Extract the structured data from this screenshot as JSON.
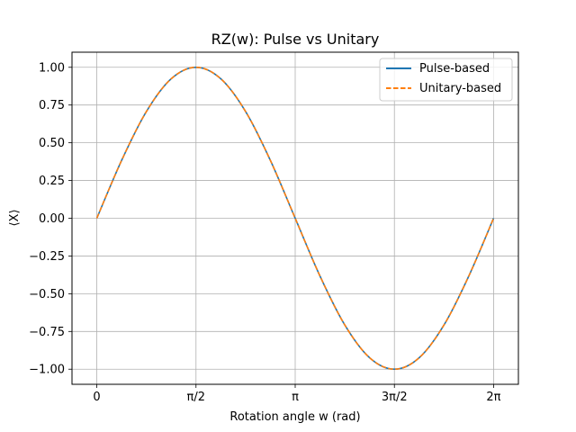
{
  "chart_data": {
    "type": "line",
    "title": "RZ(w): Pulse vs Unitary",
    "xlabel": "Rotation angle w (rad)",
    "ylabel": "⟨X⟩",
    "xlim": [
      -0.3927,
      6.6759
    ],
    "ylim": [
      -1.1,
      1.1
    ],
    "x_ticks": [
      {
        "value": 0,
        "label": "0"
      },
      {
        "value": 1.5708,
        "label": "π/2"
      },
      {
        "value": 3.1416,
        "label": "π"
      },
      {
        "value": 4.7124,
        "label": "3π/2"
      },
      {
        "value": 6.2832,
        "label": "2π"
      }
    ],
    "y_ticks": [
      {
        "value": 1.0,
        "label": "1.00"
      },
      {
        "value": 0.75,
        "label": "0.75"
      },
      {
        "value": 0.5,
        "label": "0.50"
      },
      {
        "value": 0.25,
        "label": "0.25"
      },
      {
        "value": 0.0,
        "label": "0.00"
      },
      {
        "value": -0.25,
        "label": "−0.25"
      },
      {
        "value": -0.5,
        "label": "−0.50"
      },
      {
        "value": -0.75,
        "label": "−0.75"
      },
      {
        "value": -1.0,
        "label": "−1.00"
      }
    ],
    "grid": true,
    "legend_position": "top-right",
    "x": [
      0.0,
      0.3927,
      0.7854,
      1.1781,
      1.5708,
      1.9635,
      2.3562,
      2.7489,
      3.1416,
      3.5343,
      3.927,
      4.3197,
      4.7124,
      5.1051,
      5.4978,
      5.8905,
      6.2832
    ],
    "series": [
      {
        "name": "Pulse-based",
        "color": "#1f77b4",
        "style": "solid",
        "values": [
          0.0,
          0.383,
          0.707,
          0.924,
          1.0,
          0.924,
          0.707,
          0.383,
          0.0,
          -0.383,
          -0.707,
          -0.924,
          -1.0,
          -0.924,
          -0.707,
          -0.383,
          0.0
        ]
      },
      {
        "name": "Unitary-based",
        "color": "#ff7f0e",
        "style": "dashed",
        "values": [
          0.0,
          0.383,
          0.707,
          0.924,
          1.0,
          0.924,
          0.707,
          0.383,
          0.0,
          -0.383,
          -0.707,
          -0.924,
          -1.0,
          -0.924,
          -0.707,
          -0.383,
          0.0
        ]
      }
    ]
  }
}
